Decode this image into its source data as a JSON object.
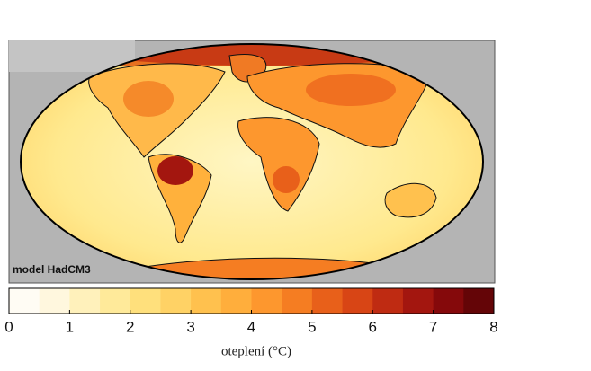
{
  "map": {
    "label": "model HadCM3"
  },
  "colorbar": {
    "lim": [
      0,
      8
    ],
    "ticks": [
      0,
      1,
      2,
      3,
      4,
      5,
      6,
      7,
      8
    ],
    "label": "oteplení (°C)",
    "colors": [
      "#fffcf4",
      "#fff7de",
      "#fff1bb",
      "#ffea9a",
      "#ffe07c",
      "#ffd265",
      "#ffc14e",
      "#ffae3c",
      "#fd972e",
      "#f57d22",
      "#e8601a",
      "#d84515",
      "#bf2b12",
      "#a3160f",
      "#85090b",
      "#640507"
    ]
  }
}
